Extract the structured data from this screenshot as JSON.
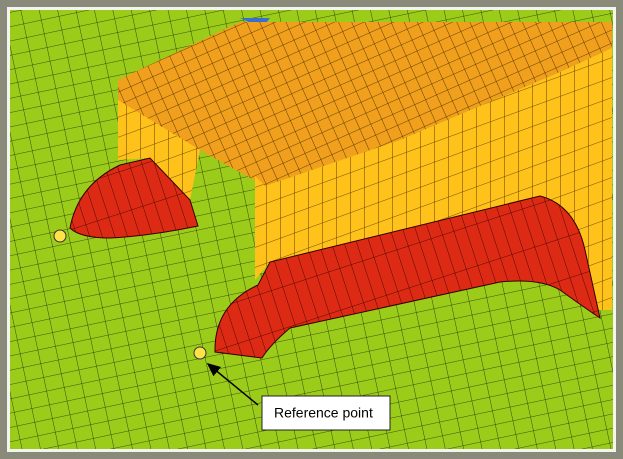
{
  "annotation": {
    "label": "Reference point"
  }
}
